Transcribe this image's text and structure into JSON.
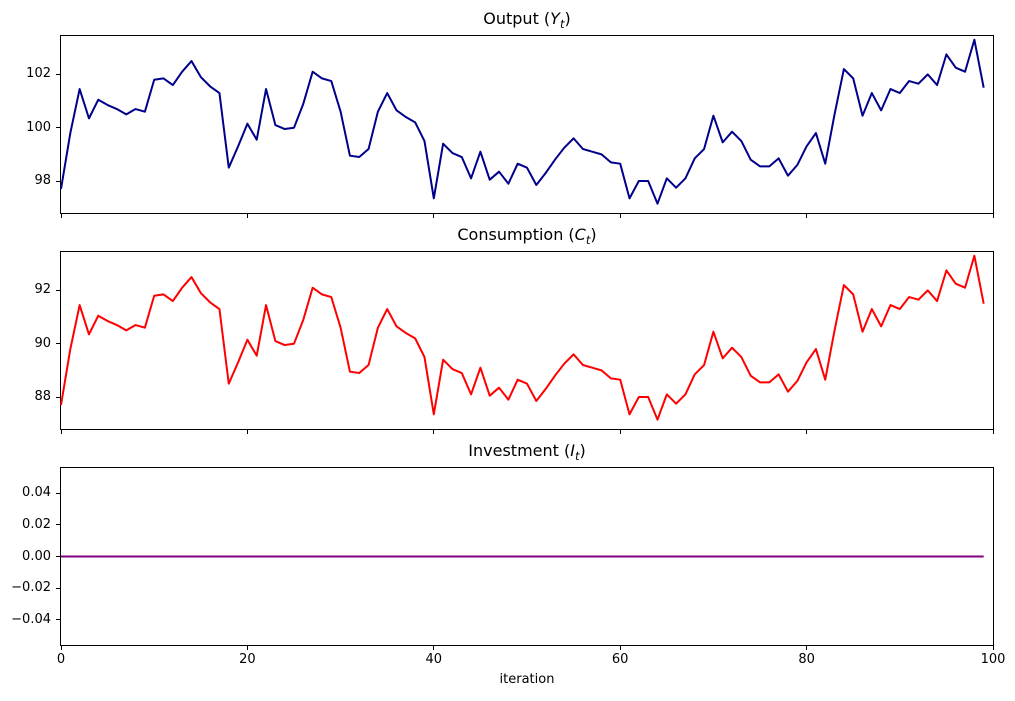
{
  "x_axis": {
    "label": "iteration",
    "xlim": [
      0,
      100
    ],
    "ticks": [
      0,
      20,
      40,
      60,
      80,
      100
    ],
    "tick_labels": [
      "0",
      "20",
      "40",
      "60",
      "80",
      "100"
    ]
  },
  "chart_data": [
    {
      "type": "line",
      "title": {
        "prefix": "Output (",
        "symbol": "Y",
        "subscript": "t",
        "suffix": ")"
      },
      "title_plain": "Output (Yt)",
      "series_name": "output-line",
      "color": "#00008B",
      "line_width": 2,
      "x_start": 0,
      "x_step": 1,
      "grid": false,
      "ylim": [
        96.8,
        103.44
      ],
      "yticks": [
        98,
        100,
        102
      ],
      "ytick_labels": [
        "98",
        "100",
        "102"
      ],
      "show_xtick_labels": false,
      "values": [
        97.7,
        99.8,
        101.45,
        100.35,
        101.05,
        100.85,
        100.7,
        100.5,
        100.7,
        100.6,
        101.8,
        101.85,
        101.6,
        102.1,
        102.5,
        101.9,
        101.55,
        101.3,
        98.5,
        99.3,
        100.15,
        99.55,
        101.45,
        100.1,
        99.95,
        100.0,
        100.9,
        102.1,
        101.85,
        101.75,
        100.6,
        98.95,
        98.9,
        99.2,
        100.6,
        101.3,
        100.65,
        100.4,
        100.2,
        99.5,
        97.35,
        99.4,
        99.05,
        98.9,
        98.1,
        99.1,
        98.05,
        98.35,
        97.9,
        98.65,
        98.5,
        97.85,
        98.3,
        98.8,
        99.25,
        99.6,
        99.2,
        99.1,
        99.0,
        98.7,
        98.65,
        97.35,
        98.0,
        98.0,
        97.15,
        98.1,
        97.75,
        98.1,
        98.85,
        99.2,
        100.45,
        99.45,
        99.85,
        99.5,
        98.8,
        98.55,
        98.55,
        98.85,
        98.2,
        98.6,
        99.3,
        99.8,
        98.65,
        100.5,
        102.2,
        101.85,
        100.45,
        101.3,
        100.65,
        101.45,
        101.3,
        101.75,
        101.65,
        102.0,
        101.6,
        102.75,
        102.25,
        102.1,
        103.3,
        101.5
      ]
    },
    {
      "type": "line",
      "title": {
        "prefix": "Consumption (",
        "symbol": "C",
        "subscript": "t",
        "suffix": ")"
      },
      "title_plain": "Consumption (Ct)",
      "series_name": "consumption-line",
      "color": "#FF0000",
      "line_width": 2,
      "x_start": 0,
      "x_step": 1,
      "grid": false,
      "ylim": [
        86.8,
        93.44
      ],
      "yticks": [
        88,
        90,
        92
      ],
      "ytick_labels": [
        "88",
        "90",
        "92"
      ],
      "show_xtick_labels": false,
      "values": [
        87.7,
        89.8,
        91.45,
        90.35,
        91.05,
        90.85,
        90.7,
        90.5,
        90.7,
        90.6,
        91.8,
        91.85,
        91.6,
        92.1,
        92.5,
        91.9,
        91.55,
        91.3,
        88.5,
        89.3,
        90.15,
        89.55,
        91.45,
        90.1,
        89.95,
        90.0,
        90.9,
        92.1,
        91.85,
        91.75,
        90.6,
        88.95,
        88.9,
        89.2,
        90.6,
        91.3,
        90.65,
        90.4,
        90.2,
        89.5,
        87.35,
        89.4,
        89.05,
        88.9,
        88.1,
        89.1,
        88.05,
        88.35,
        87.9,
        88.65,
        88.5,
        87.85,
        88.3,
        88.8,
        89.25,
        89.6,
        89.2,
        89.1,
        89.0,
        88.7,
        88.65,
        87.35,
        88.0,
        88.0,
        87.15,
        88.1,
        87.75,
        88.1,
        88.85,
        89.2,
        90.45,
        89.45,
        89.85,
        89.5,
        88.8,
        88.55,
        88.55,
        88.85,
        88.2,
        88.6,
        89.3,
        89.8,
        88.65,
        90.5,
        92.2,
        91.85,
        90.45,
        91.3,
        90.65,
        91.45,
        91.3,
        91.75,
        91.65,
        92.0,
        91.6,
        92.75,
        92.25,
        92.1,
        93.3,
        91.5
      ]
    },
    {
      "type": "line",
      "title": {
        "prefix": "Investment (",
        "symbol": "I",
        "subscript": "t",
        "suffix": ")"
      },
      "title_plain": "Investment (It)",
      "series_name": "investment-line",
      "color": "#800080",
      "line_width": 2,
      "x_start": 0,
      "x_step": 1,
      "grid": false,
      "ylim": [
        -0.0558,
        0.0558
      ],
      "yticks": [
        -0.04,
        -0.02,
        0.0,
        0.02,
        0.04
      ],
      "ytick_labels": [
        "−0.04",
        "−0.02",
        "0.00",
        "0.02",
        "0.04"
      ],
      "show_xtick_labels": true,
      "constant_value": 0.0,
      "n_points": 100
    }
  ]
}
